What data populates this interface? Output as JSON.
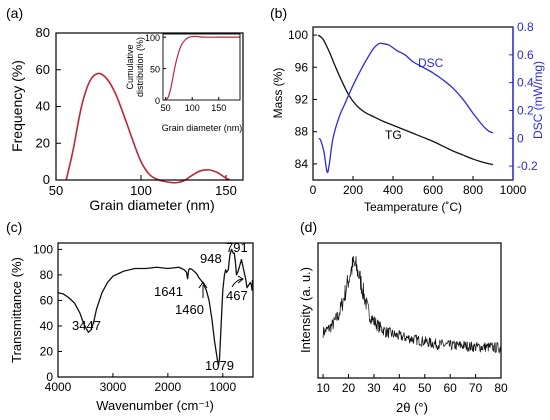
{
  "colors": {
    "curve": "#c0253a",
    "axis": "#000000",
    "dsc": "#2b2bd9",
    "tg": "#111111",
    "ftir": "#111111",
    "xrd": "#111111",
    "inset_bg": "#ffffff"
  },
  "chart_data": [
    {
      "panel": "(a)",
      "type": "line",
      "xlabel": "Grain diameter (nm)",
      "ylabel": "Frequency (%)",
      "xlim": [
        50,
        160
      ],
      "ylim": [
        0,
        80
      ],
      "xticks": [
        "50",
        "100",
        "150"
      ],
      "yticks": [
        "0",
        "20",
        "40",
        "60",
        "80"
      ],
      "series": [
        {
          "x": [
            56,
            60,
            65,
            70,
            75,
            80,
            85,
            90,
            95,
            100,
            105,
            110,
            115,
            120,
            125,
            130,
            135,
            140,
            145,
            150,
            152
          ],
          "y": [
            0,
            16.0,
            40.0,
            54.0,
            58.0,
            55.0,
            47.0,
            35.0,
            22.0,
            10.0,
            3.0,
            0.2,
            -1.0,
            -1.5,
            -0.5,
            2.5,
            5.0,
            5.5,
            4.0,
            1.0,
            0.3
          ]
        }
      ],
      "inset": {
        "type": "line",
        "xlabel": "Grain diameter (nm)",
        "ylabel": "Cumulative distribution (%)",
        "ylabel_lines": [
          "Cumulative",
          "distribution (%)"
        ],
        "xlim": [
          45,
          190
        ],
        "ylim": [
          0,
          105
        ],
        "xticks": [
          "50",
          "100",
          "150"
        ],
        "yticks": [
          "0",
          "50",
          "100"
        ],
        "series": [
          {
            "x": [
              50,
              55,
              60,
              65,
              70,
              75,
              80,
              85,
              90,
              95,
              100,
              110,
              120,
              150,
              190
            ],
            "y": [
              0,
              5,
              20,
              42,
              62,
              77,
              88,
              94,
              98,
              100,
              101,
              101,
              100,
              100,
              100
            ]
          }
        ]
      }
    },
    {
      "panel": "(b)",
      "type": "line",
      "xlabel": "Teamperature (˚C)",
      "ylabel": "Mass (%)",
      "ylabel_right": "DSC (mW/mg)",
      "xlim": [
        0,
        1000
      ],
      "ylim": [
        82,
        101
      ],
      "ylim_right": [
        -0.3,
        0.8
      ],
      "xticks": [
        "0",
        "200",
        "400",
        "600",
        "800",
        "1000"
      ],
      "yticks": [
        "84",
        "88",
        "92",
        "96",
        "100"
      ],
      "yticks_right": [
        "-0.2",
        "0",
        "0.2",
        "0.4",
        "0.6",
        "0.8"
      ],
      "series": [
        {
          "name": "TG",
          "axis": "left",
          "x": [
            25,
            50,
            80,
            110,
            140,
            180,
            220,
            260,
            300,
            350,
            400,
            450,
            500,
            550,
            600,
            650,
            700,
            750,
            800,
            850,
            900
          ],
          "y": [
            100,
            99.5,
            98,
            96.2,
            94.5,
            92.5,
            91.2,
            90.4,
            89.9,
            89.3,
            88.8,
            88.3,
            87.8,
            87.3,
            86.8,
            86.2,
            85.6,
            85.1,
            84.6,
            84.2,
            83.9
          ]
        },
        {
          "name": "DSC",
          "axis": "right",
          "x": [
            30,
            40,
            55,
            70,
            80,
            100,
            130,
            160,
            200,
            250,
            300,
            330,
            350,
            380,
            420,
            460,
            500,
            550,
            600,
            650,
            700,
            750,
            800,
            850,
            880,
            900
          ],
          "y": [
            0.0,
            -0.02,
            -0.1,
            -0.24,
            -0.2,
            0.0,
            0.15,
            0.25,
            0.38,
            0.52,
            0.64,
            0.68,
            0.68,
            0.67,
            0.63,
            0.6,
            0.55,
            0.51,
            0.47,
            0.42,
            0.36,
            0.28,
            0.18,
            0.09,
            0.05,
            0.04
          ]
        }
      ],
      "annotations": [
        "DSC",
        "TG"
      ]
    },
    {
      "panel": "(c)",
      "type": "line",
      "xlabel": "Wavenumber (cm⁻¹)",
      "ylabel": "Transmittance (%)",
      "xlim": [
        4000,
        450
      ],
      "ylim": [
        0,
        105
      ],
      "xticks": [
        "4000",
        "3000",
        "2000",
        "1000"
      ],
      "yticks": [
        "0",
        "20",
        "40",
        "60",
        "80",
        "100"
      ],
      "series": [
        {
          "x": [
            4000,
            3900,
            3800,
            3700,
            3600,
            3550,
            3500,
            3447,
            3400,
            3350,
            3300,
            3200,
            3100,
            3000,
            2900,
            2800,
            2600,
            2400,
            2200,
            2000,
            1800,
            1700,
            1660,
            1641,
            1620,
            1600,
            1550,
            1500,
            1460,
            1440,
            1400,
            1350,
            1300,
            1250,
            1200,
            1150,
            1100,
            1079,
            1060,
            1040,
            1000,
            970,
            948,
            930,
            900,
            870,
            840,
            810,
            791,
            770,
            750,
            720,
            700,
            660,
            620,
            580,
            560,
            530,
            500,
            480,
            467,
            460
          ],
          "y": [
            66,
            65,
            62,
            58,
            50,
            44,
            39,
            35,
            37,
            43,
            53,
            66,
            74,
            79,
            81,
            83,
            85,
            85,
            86,
            85,
            86,
            84,
            82,
            77,
            84,
            85,
            84,
            82,
            80,
            78,
            76,
            73,
            68,
            60,
            46,
            28,
            14,
            9,
            14,
            32,
            68,
            80,
            84,
            82,
            84,
            96,
            100,
            97,
            97,
            90,
            80,
            83,
            86,
            92,
            84,
            76,
            70,
            72,
            74,
            72,
            68,
            76
          ]
        }
      ],
      "annotations": [
        "3447",
        "1641",
        "1460",
        "1079",
        "948",
        "791",
        "467"
      ]
    },
    {
      "panel": "(d)",
      "type": "line",
      "xlabel": "2θ (°)",
      "ylabel": "Intensity (a. u.)",
      "xlim": [
        8,
        80
      ],
      "ylim": [
        0,
        1
      ],
      "xticks": [
        "10",
        "20",
        "30",
        "40",
        "50",
        "60",
        "70",
        "80"
      ],
      "yticks": [],
      "series": [
        {
          "x": [
            10,
            12,
            14,
            16,
            18,
            20,
            21,
            22,
            23,
            24,
            25,
            26,
            27,
            28,
            30,
            32,
            35,
            38,
            40,
            45,
            50,
            55,
            60,
            65,
            70,
            75,
            80
          ],
          "y": [
            0.34,
            0.36,
            0.4,
            0.46,
            0.58,
            0.73,
            0.8,
            0.84,
            0.82,
            0.77,
            0.7,
            0.62,
            0.55,
            0.48,
            0.42,
            0.38,
            0.34,
            0.32,
            0.31,
            0.29,
            0.27,
            0.25,
            0.24,
            0.24,
            0.23,
            0.23,
            0.22
          ]
        }
      ]
    }
  ]
}
